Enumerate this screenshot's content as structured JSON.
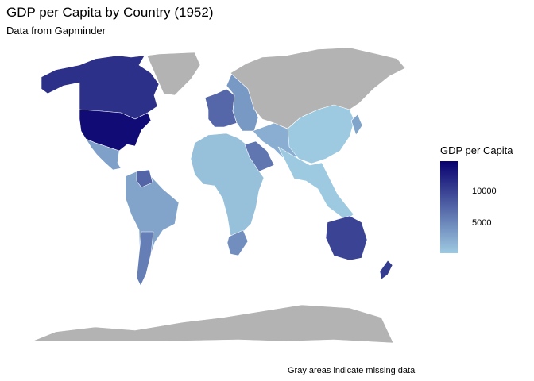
{
  "title": "GDP per Capita by Country (1952)",
  "subtitle": "Data from Gapminder",
  "caption": "Gray areas indicate missing data",
  "legend": {
    "title": "GDP per Capita",
    "ticks": [
      "10000",
      "5000"
    ],
    "tick_values": [
      10000,
      5000
    ],
    "min_value": 500,
    "max_value": 14800,
    "color_low": "#9ecae1",
    "color_high": "#08006e"
  },
  "colors": {
    "missing": "#b3b3b3",
    "border": "#ffffff"
  },
  "regions": [
    {
      "name": "Canada",
      "gdp": 11400
    },
    {
      "name": "United States",
      "gdp": 13990
    },
    {
      "name": "Mexico",
      "gdp": 3480
    },
    {
      "name": "South America",
      "gdp": 3200
    },
    {
      "name": "Venezuela",
      "gdp": 7690
    },
    {
      "name": "Argentina",
      "gdp": 5910
    },
    {
      "name": "Africa",
      "gdp": 1200
    },
    {
      "name": "South Africa",
      "gdp": 4720
    },
    {
      "name": "Western Europe",
      "gdp": 7500
    },
    {
      "name": "Eastern Europe",
      "gdp": 4000
    },
    {
      "name": "Saudi Arabia",
      "gdp": 6460
    },
    {
      "name": "Middle East",
      "gdp": 2500
    },
    {
      "name": "China",
      "gdp": 400
    },
    {
      "name": "South Asia",
      "gdp": 550
    },
    {
      "name": "Japan",
      "gdp": 3220
    },
    {
      "name": "Australia",
      "gdp": 10040
    },
    {
      "name": "New Zealand",
      "gdp": 10560
    },
    {
      "name": "Russia"
    },
    {
      "name": "Greenland"
    },
    {
      "name": "Antarctica"
    }
  ]
}
